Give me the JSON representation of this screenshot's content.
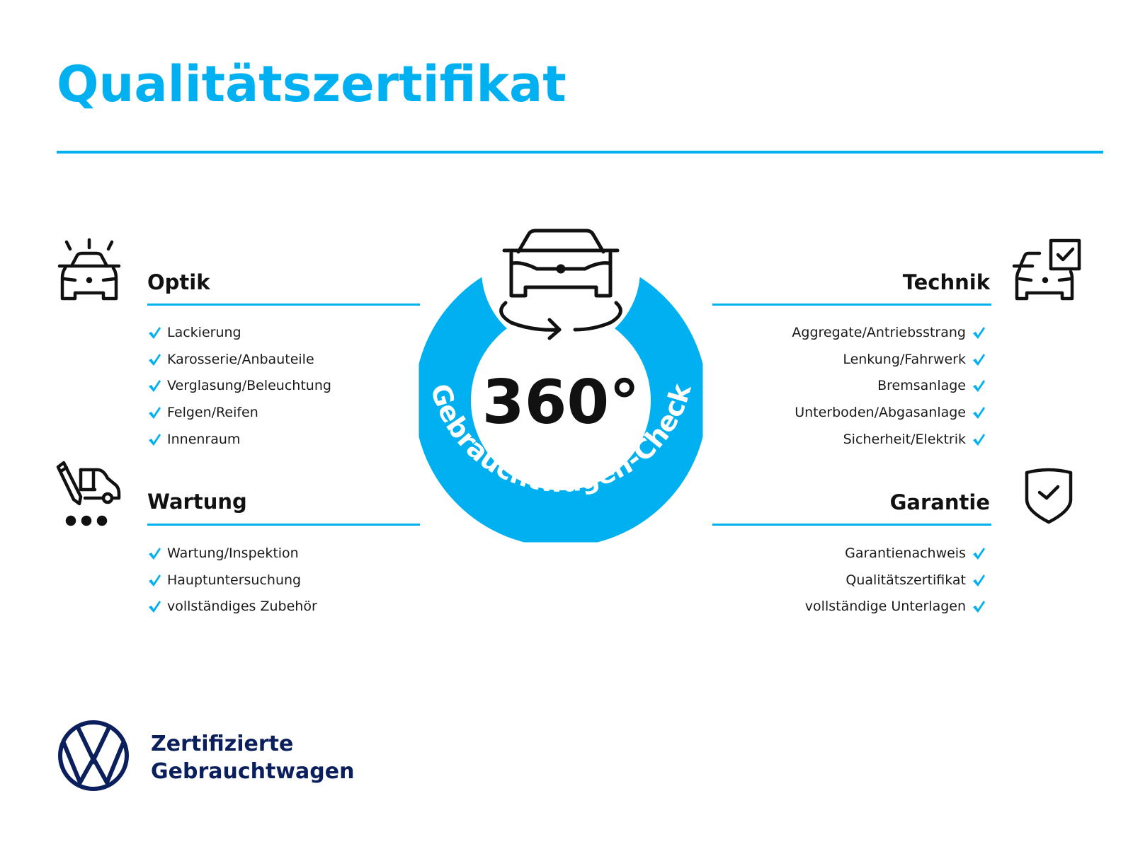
{
  "title": "Qualitätszertifikat",
  "colors": {
    "accent": "#00b0f0",
    "text": "#111111",
    "brand": "#0b1f5c"
  },
  "badge": {
    "number": "360°",
    "ring_text": "Gebrauchtwagen-Check",
    "icon": "car-rotate-icon"
  },
  "sections": {
    "optik": {
      "heading": "Optik",
      "icon": "car-shine-icon",
      "items": [
        "Lackierung",
        "Karosserie/Anbauteile",
        "Verglasung/Beleuchtung",
        "Felgen/Reifen",
        "Innenraum"
      ]
    },
    "wartung": {
      "heading": "Wartung",
      "icon": "car-service-icon",
      "items": [
        "Wartung/Inspektion",
        "Hauptuntersuchung",
        "vollständiges Zubehör"
      ]
    },
    "technik": {
      "heading": "Technik",
      "icon": "car-checklist-icon",
      "items": [
        "Aggregate/Antriebsstrang",
        "Lenkung/Fahrwerk",
        "Bremsanlage",
        "Unterboden/Abgasanlage",
        "Sicherheit/Elektrik"
      ]
    },
    "garantie": {
      "heading": "Garantie",
      "icon": "shield-check-icon",
      "items": [
        "Garantienachweis",
        "Qualitätszertifikat",
        "vollständige Unterlagen"
      ]
    }
  },
  "footer": {
    "logo": "vw-logo",
    "line1": "Zertifizierte",
    "line2": "Gebrauchtwagen"
  }
}
